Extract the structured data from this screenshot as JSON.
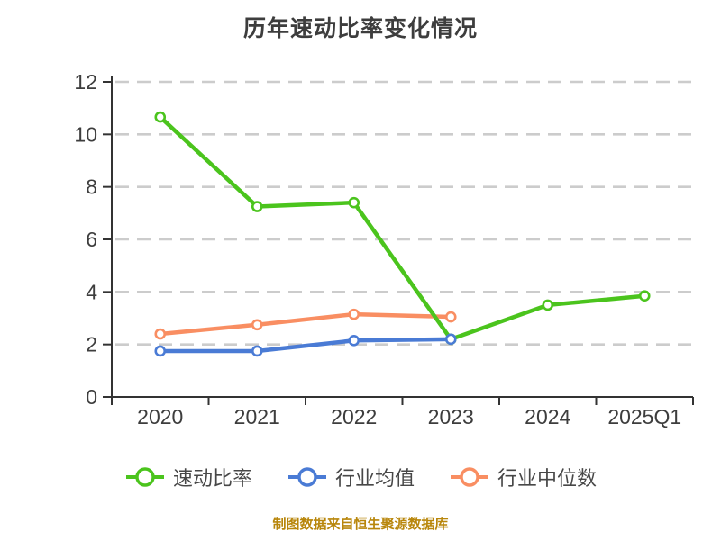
{
  "title": "历年速动比率变化情况",
  "footer": {
    "text": "制图数据来自恒生聚源数据库",
    "color": "#B8860B"
  },
  "axis": {
    "tick_label_color": "#3d3d3d",
    "axis_line_color": "#333333",
    "gridline_color": "#cccccc"
  },
  "chart_data": {
    "type": "line",
    "title": "历年速动比率变化情况",
    "categories": [
      "2020",
      "2021",
      "2022",
      "2023",
      "2024",
      "2025Q1"
    ],
    "series": [
      {
        "name": "速动比率",
        "color": "#4BC41D",
        "values": [
          10.66,
          7.25,
          7.4,
          2.2,
          3.5,
          3.85
        ]
      },
      {
        "name": "行业均值",
        "color": "#4A7BD5",
        "values": [
          1.75,
          1.75,
          2.15,
          2.2,
          null,
          null
        ]
      },
      {
        "name": "行业中位数",
        "color": "#F98E62",
        "values": [
          2.4,
          2.75,
          3.15,
          3.05,
          null,
          null
        ]
      }
    ],
    "ylim": [
      0,
      12
    ],
    "yticks": [
      0,
      2,
      4,
      6,
      8,
      10,
      12
    ],
    "grid": "horizontal-dashed",
    "legend_position": "bottom",
    "marker": "circle-white-fill"
  }
}
